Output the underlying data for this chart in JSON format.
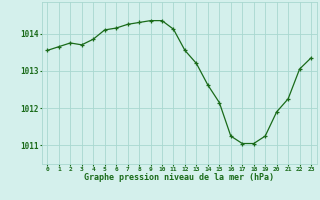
{
  "x": [
    0,
    1,
    2,
    3,
    4,
    5,
    6,
    7,
    8,
    9,
    10,
    11,
    12,
    13,
    14,
    15,
    16,
    17,
    18,
    19,
    20,
    21,
    22,
    23
  ],
  "y": [
    1013.55,
    1013.65,
    1013.75,
    1013.7,
    1013.85,
    1014.1,
    1014.15,
    1014.25,
    1014.3,
    1014.35,
    1014.35,
    1014.12,
    1013.55,
    1013.2,
    1012.62,
    1012.15,
    1011.25,
    1011.05,
    1011.05,
    1011.25,
    1011.9,
    1012.25,
    1013.05,
    1013.35
  ],
  "line_color": "#1a6b1a",
  "marker_color": "#1a6b1a",
  "bg_color": "#d4f0ec",
  "grid_color": "#a8d8d0",
  "xlabel": "Graphe pression niveau de la mer (hPa)",
  "xlabel_color": "#1a6b1a",
  "tick_color": "#1a6b1a",
  "ylim": [
    1010.5,
    1014.85
  ],
  "yticks": [
    1011,
    1012,
    1013,
    1014
  ],
  "xlim": [
    -0.5,
    23.5
  ],
  "xticks": [
    0,
    1,
    2,
    3,
    4,
    5,
    6,
    7,
    8,
    9,
    10,
    11,
    12,
    13,
    14,
    15,
    16,
    17,
    18,
    19,
    20,
    21,
    22,
    23
  ]
}
